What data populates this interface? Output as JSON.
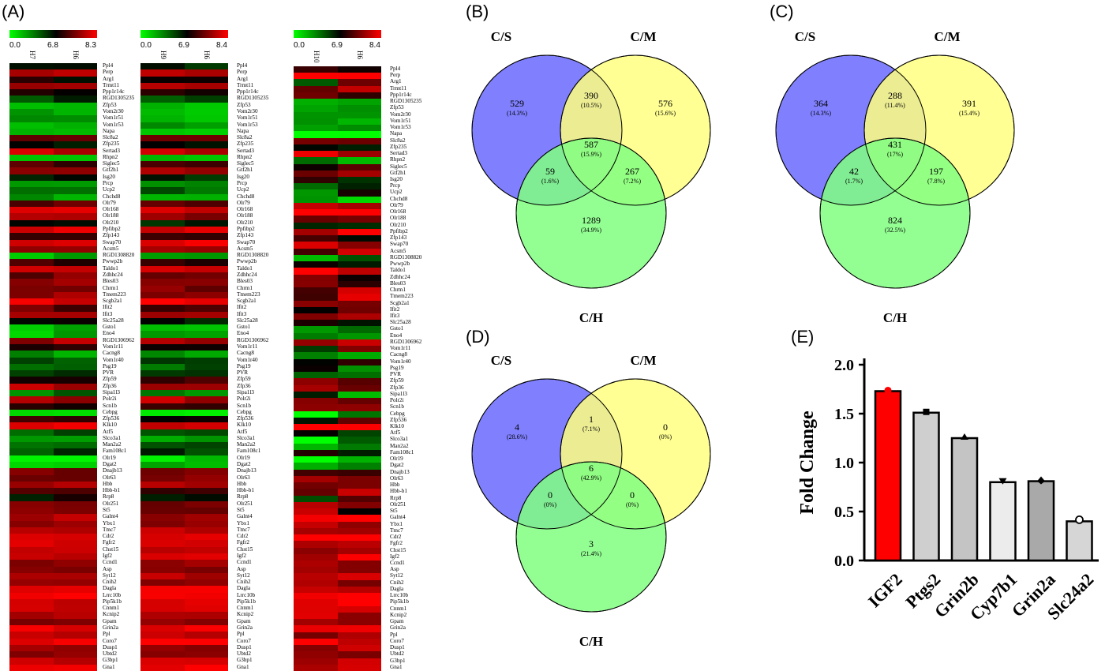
{
  "panels": {
    "a": "(A)",
    "b": "(B)",
    "c": "(C)",
    "d": "(D)",
    "e": "(E)"
  },
  "heatmaps": [
    {
      "scale": [
        "0.0",
        "6.8",
        "8.3"
      ],
      "columns": [
        "H7",
        "H6"
      ],
      "genes": [
        "Ppl4",
        "Perp",
        "Arg1",
        "Trmt11",
        "Ppp1r14c",
        "RGD1305235",
        "Zfp53",
        "Vom2r30",
        "Vom1r51",
        "Vom1r53",
        "Napa",
        "Slc8a2",
        "Zfp235",
        "Sertad3",
        "Rhpn2",
        "Siglec5",
        "Gtf2h1",
        "Isg20",
        "Prcp",
        "Ucp2",
        "Chchd8",
        "Olr79",
        "Olr168",
        "Olr188",
        "Olr210",
        "Ppfibp2",
        "Zfp143",
        "Swap70",
        "Acsm5",
        "RGD1308820",
        "Pwwp2b",
        "Taldo1",
        "Zdhhc24",
        "Bles03",
        "Chrm1",
        "Tmem223",
        "Scgb2a1",
        "Ifit2",
        "Ifit3",
        "Slc25a28",
        "Gsto1",
        "Eno4",
        "RGD1306962",
        "Vom1r11",
        "Cacng8",
        "Vom1r40",
        "Psg19",
        "PVR",
        "Zfp59",
        "Zfp36",
        "Sipa1l3",
        "Polr2i",
        "Scn1b",
        "Cebpg",
        "Zfp536",
        "Klk10",
        "Atf5",
        "Slco3a1",
        "Man2a2",
        "Fam108c1",
        "Olr19",
        "Dgat2",
        "Dnajb13",
        "Olr63",
        "Hbb",
        "Hbb-b1",
        "Rrp8",
        "Olr251",
        "St5",
        "Galnt4",
        "Ybx1",
        "Tmc7",
        "Cdr2",
        "Fgfr2",
        "Chst15",
        "Igf2",
        "Ccnd1",
        "Asp",
        "Syt12",
        "Cnih2",
        "Dagla",
        "Lrrc10b",
        "Pip5k1b",
        "Cnnm1",
        "Kcnip2",
        "Gpam",
        "Grin2a",
        "Ppl",
        "Coro7",
        "Dusp1",
        "Ubtd2",
        "G3bp1",
        "Gna1"
      ]
    },
    {
      "scale": [
        "0.0",
        "6.9",
        "8.4"
      ],
      "columns": [
        "H9",
        "H6"
      ]
    },
    {
      "scale": [
        "0.0",
        "6.9",
        "8.4"
      ],
      "columns": [
        "H10",
        "H6"
      ]
    }
  ],
  "venns": [
    {
      "labels": {
        "s": "C/S",
        "m": "C/M",
        "h": "C/H"
      },
      "regions": {
        "s": [
          "529",
          "(14.3%)"
        ],
        "sm": [
          "390",
          "(10.5%)"
        ],
        "m": [
          "576",
          "(15.6%)"
        ],
        "smh": [
          "587",
          "(15.9%)"
        ],
        "sh": [
          "59",
          "(1.6%)"
        ],
        "mh": [
          "267",
          "(7.2%)"
        ],
        "h": [
          "1289",
          "(34.9%)"
        ]
      }
    },
    {
      "labels": {
        "s": "C/S",
        "m": "C/M",
        "h": "C/H"
      },
      "regions": {
        "s": [
          "364",
          "(14.3%)"
        ],
        "sm": [
          "288",
          "(11.4%)"
        ],
        "m": [
          "391",
          "(15.4%)"
        ],
        "smh": [
          "431",
          "(17%)"
        ],
        "sh": [
          "42",
          "(1.7%)"
        ],
        "mh": [
          "197",
          "(7.8%)"
        ],
        "h": [
          "824",
          "(32.5%)"
        ]
      }
    },
    {
      "labels": {
        "s": "C/S",
        "m": "C/M",
        "h": "C/H"
      },
      "regions": {
        "s": [
          "4",
          "(28.6%)"
        ],
        "sm": [
          "1",
          "(7.1%)"
        ],
        "m": [
          "0",
          "(0%)"
        ],
        "smh": [
          "6",
          "(42.9%)"
        ],
        "sh": [
          "0",
          "(0%)"
        ],
        "mh": [
          "0",
          "(0%)"
        ],
        "h": [
          "3",
          "(21.4%)"
        ]
      }
    }
  ],
  "chart_data": {
    "type": "bar",
    "categories": [
      "IGF2",
      "Ptgs2",
      "Grin2b",
      "Cyp7b1",
      "Grin2a",
      "Slc24a2"
    ],
    "values": [
      1.73,
      1.51,
      1.25,
      0.8,
      0.81,
      0.4
    ],
    "colors": [
      "#ff0000",
      "#cfcfcf",
      "#c4c4c4",
      "#ececec",
      "#a9a9a9",
      "#d6d6d6"
    ],
    "ylabel": "Fold Change",
    "yticks": [
      "0.0",
      "0.5",
      "1.0",
      "1.5",
      "2.0"
    ],
    "ylim": [
      0,
      2.0
    ]
  }
}
